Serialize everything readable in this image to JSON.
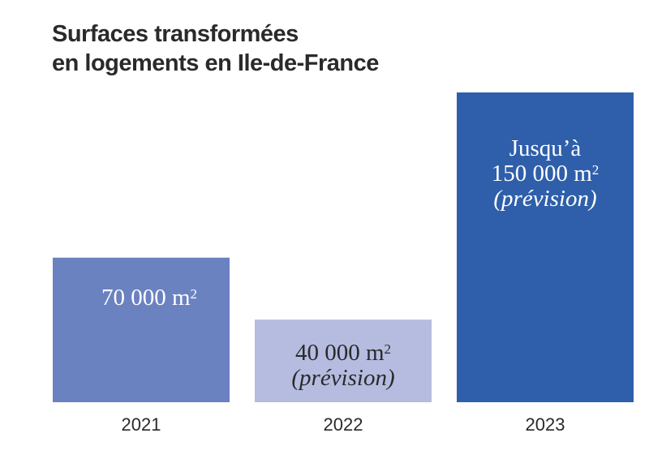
{
  "title_lines": [
    "Surfaces transformées",
    "en logements en Ile-de-France"
  ],
  "colors": {
    "bar_2021": "#6b82c1",
    "bar_2022": "#b5bce0",
    "bar_2023": "#2f5faa",
    "text_dark": "#2a2a2a",
    "text_light": "#ffffff"
  },
  "chart_data": {
    "type": "bar",
    "title": "Surfaces transformées en logements en Ile-de-France",
    "categories": [
      "2021",
      "2022",
      "2023"
    ],
    "values": [
      70000,
      40000,
      150000
    ],
    "unit": "m²",
    "ylim": [
      0,
      150000
    ],
    "xlabel": "",
    "ylabel": "",
    "grid": false,
    "bar_labels": [
      [
        "70 000 m²"
      ],
      [
        "40 000 m²",
        "(prévision)"
      ],
      [
        "Jusqu’à",
        "150 000 m²",
        "(prévision)"
      ]
    ]
  }
}
